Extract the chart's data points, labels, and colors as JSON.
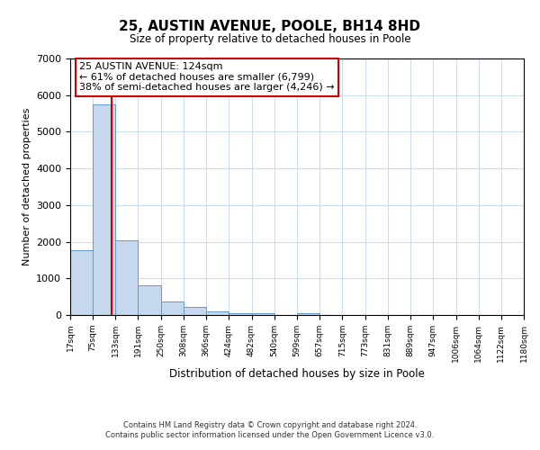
{
  "title": "25, AUSTIN AVENUE, POOLE, BH14 8HD",
  "subtitle": "Size of property relative to detached houses in Poole",
  "xlabel": "Distribution of detached houses by size in Poole",
  "ylabel": "Number of detached properties",
  "bin_labels": [
    "17sqm",
    "75sqm",
    "133sqm",
    "191sqm",
    "250sqm",
    "308sqm",
    "366sqm",
    "424sqm",
    "482sqm",
    "540sqm",
    "599sqm",
    "657sqm",
    "715sqm",
    "773sqm",
    "831sqm",
    "889sqm",
    "947sqm",
    "1006sqm",
    "1064sqm",
    "1122sqm",
    "1180sqm"
  ],
  "bar_values": [
    1780,
    5750,
    2050,
    820,
    360,
    210,
    105,
    60,
    40,
    0,
    50,
    0,
    0,
    0,
    0,
    0,
    0,
    0,
    0,
    0
  ],
  "bar_color": "#c5d8ed",
  "bar_edge_color": "#6699cc",
  "property_line_x": 124,
  "bin_edges": [
    17,
    75,
    133,
    191,
    250,
    308,
    366,
    424,
    482,
    540,
    599,
    657,
    715,
    773,
    831,
    889,
    947,
    1006,
    1064,
    1122,
    1180
  ],
  "annotation_title": "25 AUSTIN AVENUE: 124sqm",
  "annotation_line1": "← 61% of detached houses are smaller (6,799)",
  "annotation_line2": "38% of semi-detached houses are larger (4,246) →",
  "annotation_box_color": "#ffffff",
  "annotation_box_edge_color": "#cc0000",
  "vertical_line_color": "#cc0000",
  "ylim": [
    0,
    7000
  ],
  "yticks": [
    0,
    1000,
    2000,
    3000,
    4000,
    5000,
    6000,
    7000
  ],
  "footer_line1": "Contains HM Land Registry data © Crown copyright and database right 2024.",
  "footer_line2": "Contains public sector information licensed under the Open Government Licence v3.0.",
  "background_color": "#ffffff",
  "grid_color": "#ccddee"
}
